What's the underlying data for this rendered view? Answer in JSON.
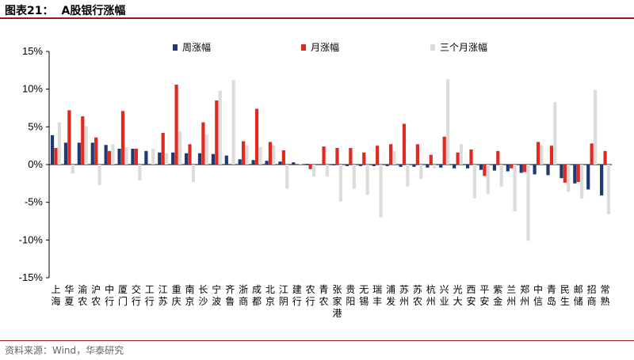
{
  "header": {
    "figure_no": "图表21：",
    "title": "A股银行涨幅"
  },
  "source": "资料来源：Wind，华泰研究",
  "chart_data": {
    "type": "bar",
    "ylim": [
      -0.15,
      0.15
    ],
    "yticks": [
      -0.15,
      -0.1,
      -0.05,
      0,
      0.05,
      0.1,
      0.15
    ],
    "ytick_labels": [
      "-15%",
      "-10%",
      "-5%",
      "0%",
      "5%",
      "10%",
      "15%"
    ],
    "legend_position": "top",
    "categories": [
      "上海",
      "华夏",
      "渝农",
      "沪农",
      "中行",
      "厦门",
      "交行",
      "工行",
      "江苏",
      "重庆",
      "南京",
      "长沙",
      "宁波",
      "齐鲁",
      "浙商",
      "成都",
      "北京",
      "江阴",
      "建行",
      "农行",
      "青农",
      "张家港",
      "贵阳",
      "无锡",
      "瑞丰",
      "浦发",
      "苏州",
      "苏农",
      "杭州",
      "兴业",
      "光大",
      "西安",
      "平安",
      "紫金",
      "兰州",
      "郑州",
      "中信",
      "青岛",
      "民生",
      "邮储",
      "招商",
      "常熟"
    ],
    "series": [
      {
        "name": "周涨幅",
        "color": "#1f3a70",
        "values": [
          0.039,
          0.029,
          0.029,
          0.029,
          0.026,
          0.021,
          0.021,
          0.018,
          0.016,
          0.016,
          0.015,
          0.015,
          0.014,
          0.012,
          0.007,
          0.006,
          0.005,
          0.004,
          0.003,
          0.001,
          0.0,
          -0.001,
          -0.002,
          -0.002,
          -0.002,
          -0.002,
          -0.003,
          -0.003,
          -0.004,
          -0.004,
          -0.005,
          -0.005,
          -0.007,
          -0.008,
          -0.009,
          -0.011,
          -0.013,
          -0.014,
          -0.018,
          -0.025,
          -0.033,
          -0.041
        ]
      },
      {
        "name": "月涨幅",
        "color": "#e02a1f",
        "values": [
          0.022,
          0.072,
          0.064,
          0.036,
          0.018,
          0.071,
          0.021,
          0.0,
          0.042,
          0.106,
          0.027,
          0.056,
          0.085,
          0.0,
          0.031,
          0.074,
          0.03,
          0.019,
          0.0,
          -0.006,
          0.024,
          0.022,
          0.022,
          0.016,
          0.025,
          0.027,
          0.054,
          0.027,
          0.013,
          0.037,
          0.016,
          0.02,
          -0.015,
          0.018,
          -0.005,
          -0.01,
          0.03,
          0.025,
          -0.024,
          -0.023,
          0.028,
          0.018
        ]
      },
      {
        "name": "三个月涨幅",
        "color": "#dcdcdc",
        "values": [
          0.056,
          -0.012,
          0.051,
          -0.027,
          0.027,
          0.023,
          -0.021,
          0.021,
          0.015,
          0.044,
          -0.023,
          0.04,
          0.098,
          0.112,
          0.025,
          0.023,
          0.025,
          -0.032,
          0.001,
          -0.016,
          -0.016,
          -0.049,
          -0.032,
          -0.04,
          -0.07,
          0.018,
          -0.029,
          -0.019,
          -0.005,
          0.113,
          0.027,
          -0.045,
          -0.039,
          -0.029,
          -0.062,
          -0.101,
          0.025,
          0.083,
          -0.036,
          -0.045,
          0.099,
          -0.066
        ]
      }
    ]
  }
}
